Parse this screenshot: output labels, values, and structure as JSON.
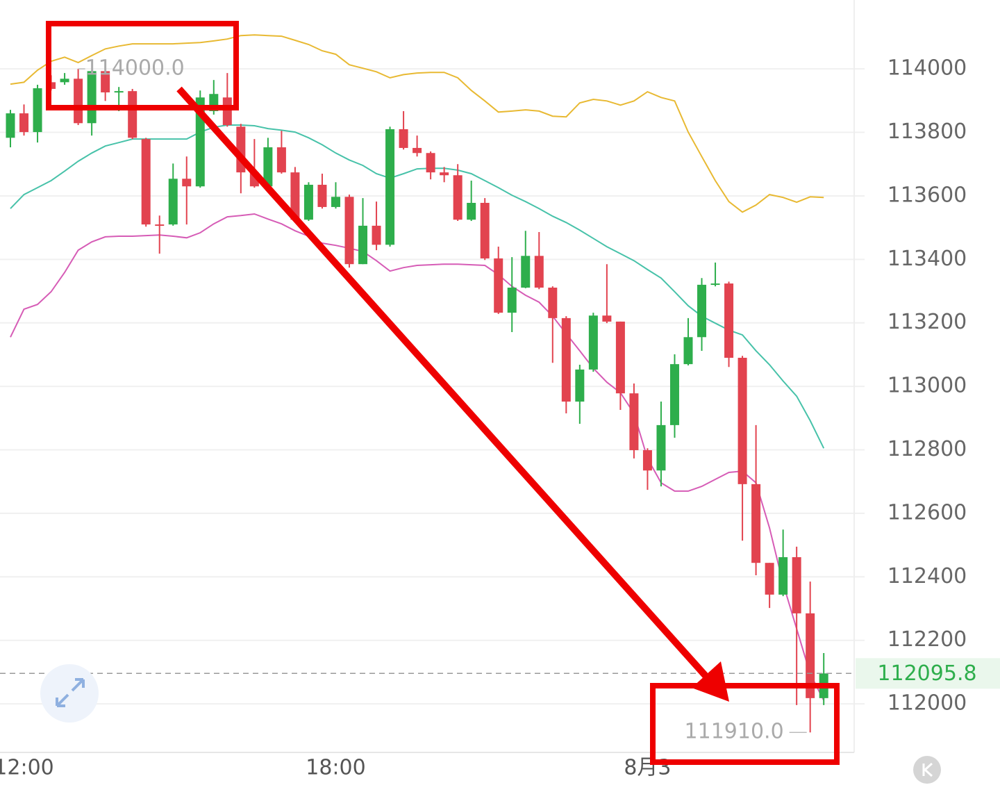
{
  "chart_data": {
    "type": "candlestick",
    "categories": [
      null,
      "12:00",
      null,
      null,
      null,
      null,
      null,
      null,
      null,
      null,
      null,
      null,
      null,
      null,
      null,
      null,
      null,
      null,
      null,
      null,
      null,
      null,
      null,
      null,
      "18:00",
      null,
      null,
      null,
      null,
      null,
      null,
      null,
      null,
      null,
      null,
      null,
      null,
      null,
      null,
      null,
      null,
      null,
      null,
      null,
      null,
      null,
      null,
      "8月3",
      null,
      null,
      null,
      null,
      null,
      null,
      null,
      null,
      null,
      null,
      null,
      null,
      null
    ],
    "open": [
      113783,
      113860,
      113801,
      113958,
      113958,
      113969,
      113829,
      113993,
      113926,
      113930,
      113779,
      113510,
      113510,
      113654,
      113630,
      113867,
      113910,
      113818,
      113674,
      113630,
      113753,
      113674,
      113525,
      113635,
      113565,
      113597,
      113385,
      113506,
      113446,
      113810,
      113751,
      113735,
      113674,
      113665,
      113525,
      113578,
      113403,
      113232,
      113311,
      113411,
      113311,
      113215,
      112952,
      113053,
      113223,
      113204,
      112978,
      112799,
      112735,
      112878,
      113070,
      113155,
      113320,
      113324,
      113090,
      112692,
      112444,
      112344,
      112462,
      112285,
      112018
    ],
    "high": [
      113871,
      113888,
      113950,
      113980,
      113987,
      114000,
      113995,
      113996,
      113943,
      113937,
      113783,
      113538,
      113702,
      113724,
      113932,
      113965,
      113987,
      113827,
      113779,
      113783,
      113805,
      113691,
      113643,
      113670,
      113643,
      113604,
      113593,
      113582,
      113818,
      113867,
      113790,
      113740,
      113691,
      113700,
      113648,
      113593,
      113440,
      113407,
      113490,
      113486,
      113315,
      113221,
      113068,
      113232,
      113385,
      113204,
      113009,
      112805,
      112952,
      113101,
      113215,
      113341,
      113390,
      113330,
      113096,
      112878,
      112444,
      112549,
      112495,
      112385,
      112160
    ],
    "low": [
      113753,
      113790,
      113768,
      113932,
      113950,
      113823,
      113790,
      113899,
      113867,
      113779,
      113503,
      113418,
      113506,
      113510,
      113626,
      113856,
      113818,
      113608,
      113626,
      113626,
      113670,
      113521,
      113521,
      113560,
      113560,
      113374,
      113385,
      113429,
      113440,
      113746,
      113724,
      113652,
      113643,
      113521,
      113521,
      113398,
      113228,
      113171,
      113309,
      113306,
      113074,
      112915,
      112882,
      113046,
      113199,
      112926,
      112773,
      112674,
      112685,
      112838,
      113066,
      113112,
      113315,
      113061,
      112514,
      112405,
      112302,
      112339,
      111996,
      111910,
      111996
    ],
    "close": [
      113860,
      113801,
      113939,
      113937,
      113969,
      113829,
      113993,
      113926,
      113930,
      113783,
      113510,
      113508,
      113654,
      113630,
      113910,
      113921,
      113823,
      113674,
      113630,
      113753,
      113674,
      113525,
      113635,
      113565,
      113597,
      113385,
      113506,
      113446,
      113810,
      113751,
      113735,
      113674,
      113665,
      113525,
      113578,
      113403,
      113232,
      113311,
      113411,
      113311,
      113215,
      112952,
      113053,
      113223,
      113204,
      112978,
      112799,
      112735,
      112878,
      113070,
      113155,
      113320,
      113324,
      113090,
      112692,
      112444,
      112344,
      112462,
      112285,
      112018,
      112095.8
    ],
    "up_color": "#2eae4c",
    "down_color": "#e2434f",
    "overlays": [
      {
        "color": "#e8b932",
        "values": [
          113952,
          113958,
          113996,
          114024,
          114037,
          114020,
          114042,
          114063,
          114072,
          114079,
          114079,
          114079,
          114079,
          114081,
          114083,
          114088,
          114094,
          114105,
          114107,
          114105,
          114103,
          114090,
          114077,
          114057,
          114046,
          114013,
          114002,
          113991,
          113972,
          113982,
          113987,
          113989,
          113989,
          113972,
          113932,
          113899,
          113864,
          113867,
          113871,
          113867,
          113851,
          113849,
          113893,
          113904,
          113899,
          113886,
          113899,
          113928,
          113910,
          113899,
          113801,
          113724,
          113648,
          113582,
          113549,
          113571,
          113604,
          113595,
          113580,
          113597,
          113595
        ]
      },
      {
        "color": "#47c2a9",
        "values": [
          113560,
          113604,
          113626,
          113648,
          113678,
          113709,
          113735,
          113757,
          113768,
          113779,
          113779,
          113779,
          113779,
          113779,
          113801,
          113816,
          113823,
          113823,
          113821,
          113812,
          113807,
          113801,
          113783,
          113761,
          113735,
          113713,
          113696,
          113670,
          113656,
          113670,
          113685,
          113687,
          113687,
          113681,
          113670,
          113648,
          113626,
          113602,
          113582,
          113560,
          113536,
          113516,
          113492,
          113466,
          113440,
          113418,
          113396,
          113368,
          113341,
          113298,
          113254,
          113221,
          113199,
          113177,
          113162,
          113112,
          113068,
          113017,
          112969,
          112892,
          112805
        ]
      },
      {
        "color": "#d65cb6",
        "values": [
          113155,
          113243,
          113258,
          113298,
          113359,
          113429,
          113455,
          113471,
          113473,
          113473,
          113475,
          113477,
          113473,
          113468,
          113484,
          113512,
          113534,
          113538,
          113543,
          113527,
          113512,
          113490,
          113473,
          113451,
          113444,
          113435,
          113425,
          113396,
          113363,
          113374,
          113381,
          113383,
          113385,
          113385,
          113383,
          113381,
          113352,
          113315,
          113287,
          113265,
          113221,
          113166,
          113112,
          113057,
          113013,
          112980,
          112915,
          112773,
          112696,
          112670,
          112670,
          112685,
          112707,
          112729,
          112733,
          112696,
          112554,
          112379,
          112236,
          112094,
          112011
        ]
      }
    ],
    "ylim": [
      111847,
      114217
    ],
    "yticks": [
      112000,
      112200,
      112400,
      112600,
      112800,
      113000,
      113200,
      113400,
      113600,
      113800,
      114000
    ],
    "grid": true,
    "last_price": 112095.8,
    "annotations": [
      {
        "value": 114000,
        "label": "114000.0",
        "index": 5
      },
      {
        "value": 111910,
        "label": "111910.0",
        "index": 59
      }
    ]
  }
}
